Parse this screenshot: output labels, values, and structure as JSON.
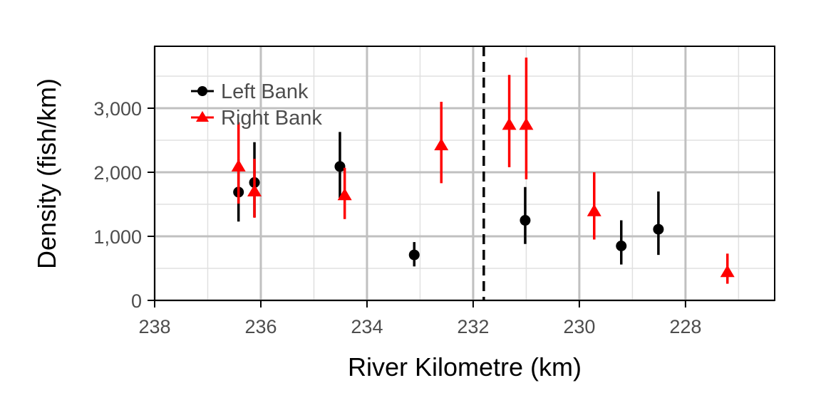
{
  "chart_data": {
    "type": "scatter",
    "xlabel": "River Kilometre (km)",
    "ylabel": "Density (fish/km)",
    "xlim": [
      238,
      226.32
    ],
    "x_reversed": true,
    "ylim": [
      0,
      3967
    ],
    "xticks": [
      238,
      236,
      234,
      232,
      230,
      228
    ],
    "yticks": [
      0,
      1000,
      2000,
      3000
    ],
    "ytick_labels": [
      "0",
      "1,000",
      "2,000",
      "3,000"
    ],
    "grid": true,
    "legend": "top-left",
    "vline": {
      "x": 231.8,
      "style": "dashed",
      "color": "#000000"
    },
    "series": [
      {
        "name": "Left Bank",
        "marker": "circle",
        "color": "#000000",
        "points": [
          {
            "x": 236.42,
            "y": 1690,
            "lo": 1230,
            "hi": 2200
          },
          {
            "x": 236.12,
            "y": 1840,
            "lo": 1300,
            "hi": 2470
          },
          {
            "x": 234.51,
            "y": 2090,
            "lo": 1600,
            "hi": 2630
          },
          {
            "x": 233.11,
            "y": 710,
            "lo": 530,
            "hi": 910
          },
          {
            "x": 231.02,
            "y": 1250,
            "lo": 880,
            "hi": 1770
          },
          {
            "x": 229.21,
            "y": 850,
            "lo": 560,
            "hi": 1250
          },
          {
            "x": 228.51,
            "y": 1110,
            "lo": 710,
            "hi": 1700
          }
        ]
      },
      {
        "name": "Right Bank",
        "marker": "triangle",
        "color": "#ff0000",
        "points": [
          {
            "x": 236.42,
            "y": 2080,
            "lo": 1510,
            "hi": 2780
          },
          {
            "x": 236.12,
            "y": 1690,
            "lo": 1290,
            "hi": 2210
          },
          {
            "x": 234.42,
            "y": 1630,
            "lo": 1270,
            "hi": 2070
          },
          {
            "x": 232.6,
            "y": 2410,
            "lo": 1830,
            "hi": 3100
          },
          {
            "x": 231.32,
            "y": 2730,
            "lo": 2080,
            "hi": 3520
          },
          {
            "x": 231.0,
            "y": 2730,
            "lo": 1890,
            "hi": 3790
          },
          {
            "x": 229.72,
            "y": 1380,
            "lo": 950,
            "hi": 2000
          },
          {
            "x": 227.21,
            "y": 430,
            "lo": 260,
            "hi": 730
          }
        ]
      }
    ]
  }
}
